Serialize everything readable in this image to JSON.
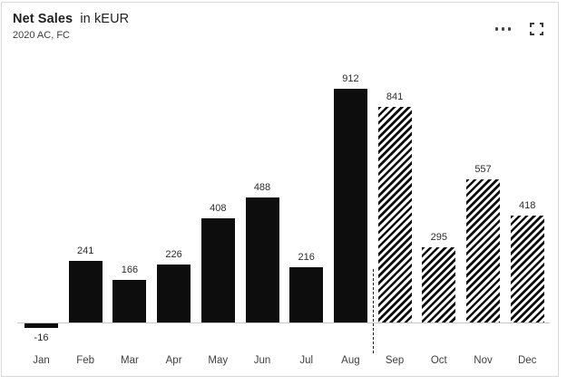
{
  "header": {
    "title_bold": "Net Sales",
    "title_rest": "in kEUR",
    "subtitle": "2020 AC, FC"
  },
  "icons": {
    "more_options": "ellipsis-icon",
    "focus_mode": "expand-icon"
  },
  "chart_data": {
    "type": "bar",
    "title": "Net Sales in kEUR",
    "subtitle": "2020 AC, FC",
    "categories": [
      "Jan",
      "Feb",
      "Mar",
      "Apr",
      "May",
      "Jun",
      "Jul",
      "Aug",
      "Sep",
      "Oct",
      "Nov",
      "Dec"
    ],
    "values": [
      -16,
      241,
      166,
      226,
      408,
      488,
      216,
      912,
      841,
      295,
      557,
      418
    ],
    "scenarios": [
      "AC",
      "AC",
      "AC",
      "AC",
      "AC",
      "AC",
      "AC",
      "AC",
      "FC",
      "FC",
      "FC",
      "FC"
    ],
    "scenario_styles": {
      "AC": "solid",
      "FC": "hatched"
    },
    "separator_after": "Aug",
    "value_labels": true,
    "grid": false,
    "legend": "none",
    "baseline": 0,
    "ylim": [
      -50,
      1000
    ],
    "bar_color": "#0d0d0d",
    "axis_color": "#c8c8c8",
    "value_label_color": "#2b2b2b",
    "category_label_color": "#404040"
  }
}
